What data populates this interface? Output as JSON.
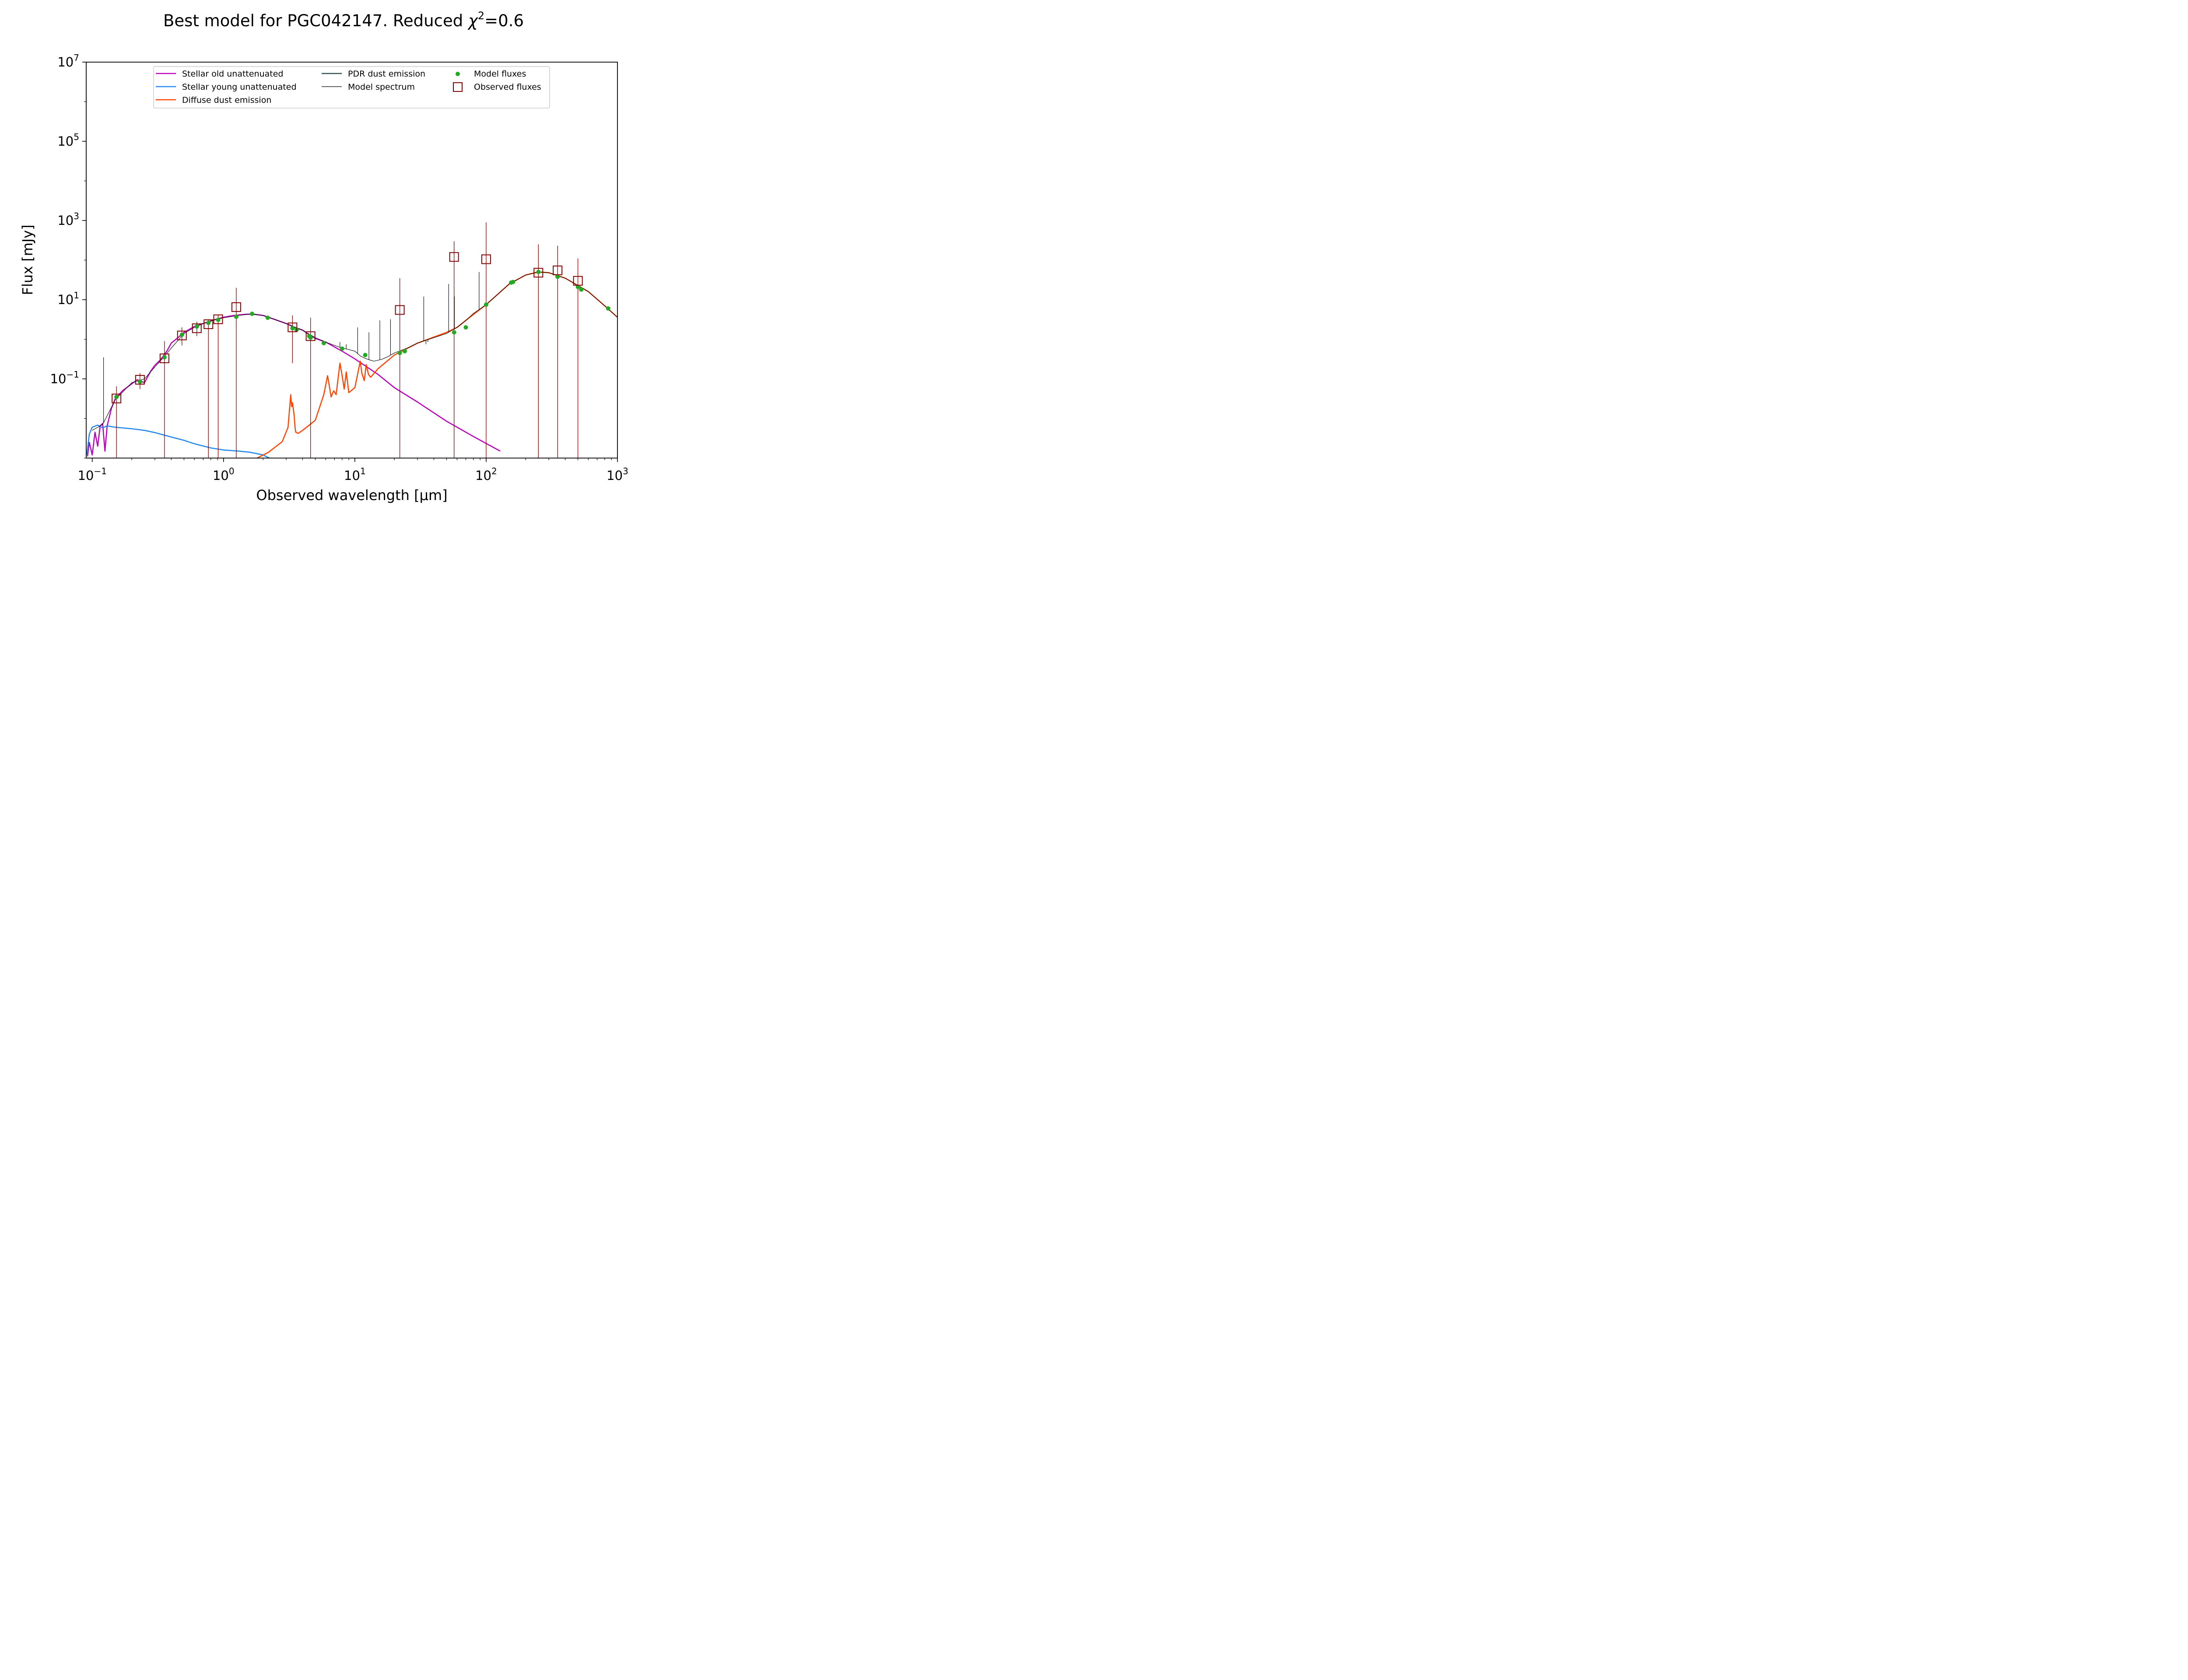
{
  "chart_data": {
    "type": "line",
    "title": "Best model for PGC042147. Reduced χ²=0.6",
    "title_parts": {
      "main": "Best model for PGC042147. Reduced ",
      "chi": "χ",
      "sup": "2",
      "tail": "=0.6"
    },
    "xlabel": "Observed wavelength [μm]",
    "ylabel": "Flux [mJy]",
    "xscale": "log",
    "yscale": "log",
    "xlim": [
      0.09,
      1000
    ],
    "ylim": [
      0.001,
      10000000
    ],
    "xticks": [
      {
        "value": 0.1,
        "base": "10",
        "exp": "−1"
      },
      {
        "value": 1,
        "base": "10",
        "exp": "0"
      },
      {
        "value": 10,
        "base": "10",
        "exp": "1"
      },
      {
        "value": 100,
        "base": "10",
        "exp": "2"
      },
      {
        "value": 1000,
        "base": "10",
        "exp": "3"
      }
    ],
    "yticks": [
      {
        "value": 0.1,
        "base": "10",
        "exp": "−1"
      },
      {
        "value": 10,
        "base": "10",
        "exp": "1"
      },
      {
        "value": 1000,
        "base": "10",
        "exp": "3"
      },
      {
        "value": 100000,
        "base": "10",
        "exp": "5"
      },
      {
        "value": 10000000,
        "base": "10",
        "exp": "7"
      }
    ],
    "grid": false,
    "legend": {
      "placement": "top-center",
      "entries": [
        {
          "label": "Stellar old unattenuated",
          "kind": "line",
          "color": "#bb00bb"
        },
        {
          "label": "Stellar young unattenuated",
          "kind": "line",
          "color": "#2288ee"
        },
        {
          "label": "Diffuse dust emission",
          "kind": "line",
          "color": "#ff4400"
        },
        {
          "label": "PDR dust emission",
          "kind": "line",
          "color": "#2f4f4f"
        },
        {
          "label": "Model spectrum",
          "kind": "thin-line",
          "color": "#000000"
        },
        {
          "label": "Model fluxes",
          "kind": "dot",
          "color": "#22aa22"
        },
        {
          "label": "Observed fluxes",
          "kind": "square",
          "color": "#800000"
        }
      ]
    },
    "series": [
      {
        "name": "Stellar old unattenuated",
        "color": "#bb00bb",
        "x": [
          0.092,
          0.095,
          0.1,
          0.105,
          0.11,
          0.115,
          0.12,
          0.125,
          0.13,
          0.14,
          0.15,
          0.17,
          0.2,
          0.22,
          0.25,
          0.28,
          0.3,
          0.33,
          0.37,
          0.4,
          0.45,
          0.5,
          0.6,
          0.7,
          0.8,
          0.9,
          1.0,
          1.2,
          1.5,
          1.7,
          2.0,
          2.5,
          3.0,
          3.5,
          4.0,
          4.5,
          5.0,
          6.0,
          8.0,
          10.0,
          15.0,
          20.0,
          30.0,
          50.0,
          80.0,
          128.0
        ],
        "y": [
          0.0011,
          0.0025,
          0.0012,
          0.0045,
          0.002,
          0.0065,
          0.0075,
          0.0015,
          0.0065,
          0.018,
          0.032,
          0.05,
          0.075,
          0.095,
          0.08,
          0.16,
          0.22,
          0.3,
          0.5,
          0.8,
          1.1,
          1.5,
          2.1,
          2.5,
          2.9,
          3.3,
          3.6,
          4.0,
          4.3,
          4.3,
          4.0,
          3.1,
          2.5,
          2.0,
          1.7,
          1.3,
          1.05,
          0.85,
          0.5,
          0.32,
          0.13,
          0.06,
          0.026,
          0.0085,
          0.0035,
          0.0015
        ]
      },
      {
        "name": "Stellar young unattenuated",
        "color": "#2288ee",
        "x": [
          0.091,
          0.095,
          0.1,
          0.11,
          0.12,
          0.13,
          0.15,
          0.2,
          0.25,
          0.3,
          0.4,
          0.5,
          0.6,
          0.8,
          1.0,
          1.3,
          1.6,
          2.0,
          2.3
        ],
        "y": [
          0.0012,
          0.004,
          0.006,
          0.0068,
          0.0058,
          0.0065,
          0.006,
          0.0055,
          0.005,
          0.0044,
          0.0034,
          0.0028,
          0.0023,
          0.0018,
          0.0016,
          0.0015,
          0.0014,
          0.0012,
          0.00095
        ]
      },
      {
        "name": "Diffuse dust emission",
        "color": "#ff4400",
        "x": [
          1.8,
          2.2,
          2.8,
          3.1,
          3.25,
          3.3,
          3.35,
          3.45,
          3.5,
          3.55,
          3.7,
          4.0,
          5.0,
          5.8,
          6.2,
          6.6,
          6.9,
          7.2,
          7.7,
          8.0,
          8.3,
          8.6,
          9.0,
          10.0,
          11.0,
          11.3,
          11.8,
          12.2,
          12.7,
          13.2,
          15.0,
          20.0,
          30.0,
          50.0,
          60.0,
          70.0,
          100.0,
          150.0,
          200.0,
          250.0,
          300.0,
          400.0,
          600.0,
          800.0,
          1000.0
        ],
        "y": [
          0.001,
          0.0014,
          0.0026,
          0.006,
          0.04,
          0.02,
          0.025,
          0.012,
          0.006,
          0.0045,
          0.0042,
          0.005,
          0.009,
          0.04,
          0.12,
          0.035,
          0.05,
          0.04,
          0.25,
          0.12,
          0.055,
          0.15,
          0.045,
          0.06,
          0.28,
          0.14,
          0.09,
          0.23,
          0.13,
          0.11,
          0.18,
          0.4,
          0.8,
          1.5,
          2.0,
          3.0,
          7.5,
          25.0,
          42.0,
          50.0,
          48.0,
          35.0,
          16.0,
          7.0,
          3.6
        ]
      },
      {
        "name": "Model spectrum",
        "color": "#000000",
        "x": [
          0.1,
          0.12,
          0.15,
          0.2,
          0.25,
          0.3,
          0.35,
          0.4,
          0.5,
          0.6,
          0.7,
          0.8,
          1.0,
          1.3,
          1.6,
          2.0,
          2.5,
          3.0,
          3.5,
          4.0,
          5.0,
          6.0,
          7.0,
          8.0,
          9.0,
          10.0,
          11.0,
          12.0,
          13.0,
          14.0,
          16.0,
          18.0,
          20.0,
          25.0,
          30.0,
          40.0,
          50.0,
          60.0,
          70.0,
          80.0,
          100.0,
          150.0,
          200.0,
          250.0,
          300.0,
          400.0,
          600.0,
          800.0,
          1000.0
        ],
        "y": [
          0.005,
          0.007,
          0.03,
          0.08,
          0.1,
          0.2,
          0.35,
          0.6,
          1.4,
          2.0,
          2.5,
          2.9,
          3.5,
          4.0,
          4.3,
          4.0,
          3.1,
          2.5,
          2.0,
          1.7,
          1.1,
          0.85,
          0.7,
          0.6,
          0.55,
          0.5,
          0.38,
          0.33,
          0.3,
          0.28,
          0.31,
          0.37,
          0.45,
          0.6,
          0.8,
          1.1,
          1.4,
          2.0,
          3.0,
          4.5,
          7.5,
          25.0,
          42.0,
          50.0,
          48.0,
          35.0,
          16.0,
          7.0,
          3.6
        ],
        "lines": [
          {
            "x": 0.122,
            "y": 0.35
          },
          {
            "x": 7.7,
            "y": 0.85
          },
          {
            "x": 8.6,
            "y": 0.75
          },
          {
            "x": 10.5,
            "y": 2.0
          },
          {
            "x": 12.8,
            "y": 1.5
          },
          {
            "x": 15.5,
            "y": 3.0
          },
          {
            "x": 18.7,
            "y": 3.2
          },
          {
            "x": 33.5,
            "y": 12.0
          },
          {
            "x": 34.8,
            "y": 0.75
          },
          {
            "x": 36.0,
            "y": 0.85
          },
          {
            "x": 51.8,
            "y": 25.0
          },
          {
            "x": 57.3,
            "y": 12.0
          },
          {
            "x": 88.4,
            "y": 50.0
          }
        ]
      }
    ],
    "model_fluxes": {
      "name": "Model fluxes",
      "color": "#22aa22",
      "points": [
        {
          "x": 0.153,
          "y": 0.035
        },
        {
          "x": 0.231,
          "y": 0.085
        },
        {
          "x": 0.355,
          "y": 0.35
        },
        {
          "x": 0.482,
          "y": 1.3
        },
        {
          "x": 0.626,
          "y": 2.1
        },
        {
          "x": 0.767,
          "y": 2.6
        },
        {
          "x": 0.91,
          "y": 3.1
        },
        {
          "x": 1.25,
          "y": 3.7
        },
        {
          "x": 1.65,
          "y": 4.4
        },
        {
          "x": 2.17,
          "y": 3.5
        },
        {
          "x": 3.35,
          "y": 1.9
        },
        {
          "x": 3.6,
          "y": 1.75
        },
        {
          "x": 4.5,
          "y": 1.2
        },
        {
          "x": 4.6,
          "y": 1.1
        },
        {
          "x": 5.8,
          "y": 0.8
        },
        {
          "x": 8.0,
          "y": 0.58
        },
        {
          "x": 12.0,
          "y": 0.4
        },
        {
          "x": 22.0,
          "y": 0.45
        },
        {
          "x": 24.0,
          "y": 0.5
        },
        {
          "x": 57.0,
          "y": 1.5
        },
        {
          "x": 70.0,
          "y": 2.0
        },
        {
          "x": 100.0,
          "y": 7.5
        },
        {
          "x": 155.0,
          "y": 27.0
        },
        {
          "x": 160.0,
          "y": 28.0
        },
        {
          "x": 250.0,
          "y": 50.0
        },
        {
          "x": 350.0,
          "y": 38.0
        },
        {
          "x": 500.0,
          "y": 21.0
        },
        {
          "x": 530.0,
          "y": 18.0
        },
        {
          "x": 850.0,
          "y": 6.0
        }
      ]
    },
    "observed_fluxes": {
      "name": "Observed fluxes",
      "color": "#800000",
      "points": [
        {
          "x": 0.153,
          "y": 0.032,
          "ylo": 0.001,
          "yhi": 0.065
        },
        {
          "x": 0.231,
          "y": 0.095,
          "ylo": 0.055,
          "yhi": 0.14
        },
        {
          "x": 0.355,
          "y": 0.33,
          "ylo": 0.001,
          "yhi": 0.9
        },
        {
          "x": 0.482,
          "y": 1.25,
          "ylo": 0.7,
          "yhi": 2.0
        },
        {
          "x": 0.626,
          "y": 1.9,
          "ylo": 1.2,
          "yhi": 2.8
        },
        {
          "x": 0.767,
          "y": 2.4,
          "ylo": 0.001,
          "yhi": 3.2
        },
        {
          "x": 0.91,
          "y": 3.2,
          "ylo": 0.001,
          "yhi": 4.2
        },
        {
          "x": 1.25,
          "y": 6.5,
          "ylo": 0.001,
          "yhi": 20.0
        },
        {
          "x": 3.35,
          "y": 2.0,
          "ylo": 0.25,
          "yhi": 4.0
        },
        {
          "x": 4.6,
          "y": 1.2,
          "ylo": 0.001,
          "yhi": 3.5
        },
        {
          "x": 22.0,
          "y": 5.5,
          "ylo": 0.001,
          "yhi": 35.0
        },
        {
          "x": 57.0,
          "y": 120.0,
          "ylo": 0.001,
          "yhi": 300.0
        },
        {
          "x": 100.0,
          "y": 105.0,
          "ylo": 0.001,
          "yhi": 900.0
        },
        {
          "x": 250.0,
          "y": 48.0,
          "ylo": 0.001,
          "yhi": 250.0
        },
        {
          "x": 350.0,
          "y": 55.0,
          "ylo": 0.001,
          "yhi": 230.0
        },
        {
          "x": 500.0,
          "y": 30.0,
          "ylo": 0.001,
          "yhi": 110.0
        }
      ]
    }
  }
}
